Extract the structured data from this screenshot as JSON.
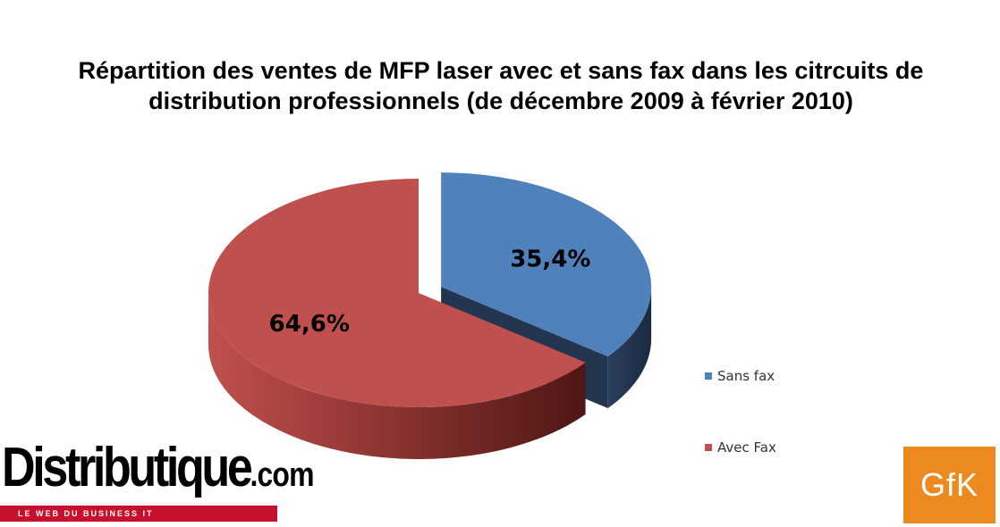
{
  "chart_data": {
    "type": "pie",
    "title": "Répartition des ventes de MFP laser avec et sans fax dans les citrcuits de distribution professionnels (de décembre 2009 à février 2010)",
    "slices": [
      {
        "name": "Sans fax",
        "value": 35.4,
        "label": "35,4%",
        "color": "#4f81bd",
        "exploded": true
      },
      {
        "name": "Avec Fax",
        "value": 64.6,
        "label": "64,6%",
        "color": "#c0504d",
        "exploded": false
      }
    ],
    "legend_position": "right",
    "style": "3d-exploded"
  },
  "logos": {
    "distributique_main": "Distributique",
    "distributique_suffix": ".com",
    "distributique_tagline": "LE WEB DU BUSINESS IT",
    "gfk": "GfK"
  }
}
